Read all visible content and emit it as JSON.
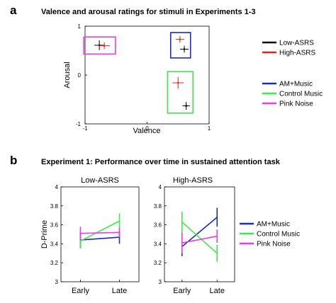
{
  "panels": {
    "a": {
      "letter": "a",
      "title": "Valence and arousal ratings for stimuli in Experiments 1-3"
    },
    "b": {
      "letter": "b",
      "title": "Experiment 1: Performance over time in sustained attention task"
    }
  },
  "colors": {
    "low_asrs": "#000000",
    "high_asrs": "#e8211f",
    "am_music": "#1a2fb6",
    "control_music": "#3ee84a",
    "pink_noise": "#e83ee5"
  },
  "chart_data": [
    {
      "type": "scatter",
      "title": "Valence and arousal ratings for stimuli in Experiments 1-3",
      "xlabel": "Valence",
      "ylabel": "Arousal",
      "xlim": [
        -1,
        1
      ],
      "ylim": [
        -1,
        1
      ],
      "xticks": [
        "-1",
        "0",
        "1"
      ],
      "yticks": [
        "-1",
        "0",
        "1"
      ],
      "grid": false,
      "legend": "right",
      "series": [
        {
          "name": "Low-ASRS",
          "color": "#000000",
          "points": [
            {
              "x": -0.77,
              "y": 0.61,
              "xerr": 0.08,
              "yerr": 0.1
            },
            {
              "x": 0.6,
              "y": 0.53,
              "xerr": 0.07,
              "yerr": 0.07
            },
            {
              "x": 0.63,
              "y": -0.63,
              "xerr": 0.06,
              "yerr": 0.08
            }
          ]
        },
        {
          "name": "High-ASRS",
          "color": "#e8211f",
          "points": [
            {
              "x": -0.69,
              "y": 0.6,
              "xerr": 0.09,
              "yerr": 0.07
            },
            {
              "x": 0.53,
              "y": 0.73,
              "xerr": 0.07,
              "yerr": 0.07
            },
            {
              "x": 0.5,
              "y": -0.16,
              "xerr": 0.09,
              "yerr": 0.12
            }
          ]
        }
      ],
      "groups": [
        {
          "name": "AM+Music",
          "color": "#1a2fb6",
          "x": [
            0.38,
            0.7
          ],
          "y": [
            0.35,
            0.87
          ]
        },
        {
          "name": "Control Music",
          "color": "#3ee84a",
          "x": [
            0.33,
            0.74
          ],
          "y": [
            -0.78,
            0.07
          ]
        },
        {
          "name": "Pink Noise",
          "color": "#e83ee5",
          "x": [
            -1.02,
            -0.51
          ],
          "y": [
            0.43,
            0.78
          ]
        }
      ]
    },
    {
      "type": "line",
      "title": "Low-ASRS",
      "ylabel": "D-Prime",
      "categories": [
        "Early",
        "Late"
      ],
      "ylim": [
        3,
        4
      ],
      "yticks": [
        "3",
        "3.2",
        "3.4",
        "3.6",
        "3.8",
        "4"
      ],
      "series": [
        {
          "name": "AM+Music",
          "color": "#1a2fb6",
          "values": [
            3.44,
            3.47
          ],
          "err": [
            0.08,
            0.07
          ]
        },
        {
          "name": "Control Music",
          "color": "#3ee84a",
          "values": [
            3.43,
            3.64
          ],
          "err": [
            0.08,
            0.08
          ]
        },
        {
          "name": "Pink Noise",
          "color": "#e83ee5",
          "values": [
            3.51,
            3.52
          ],
          "err": [
            0.07,
            0.05
          ]
        }
      ]
    },
    {
      "type": "line",
      "title": "High-ASRS",
      "categories": [
        "Early",
        "Late"
      ],
      "ylim": [
        3,
        4
      ],
      "yticks": [
        "3",
        "3.2",
        "3.4",
        "3.6",
        "3.8",
        "4"
      ],
      "legend": "right",
      "series": [
        {
          "name": "AM+Music",
          "color": "#1a2fb6",
          "values": [
            3.37,
            3.68
          ],
          "err": [
            0.1,
            0.1
          ]
        },
        {
          "name": "Control Music",
          "color": "#3ee84a",
          "values": [
            3.63,
            3.3
          ],
          "err": [
            0.11,
            0.09
          ]
        },
        {
          "name": "Pink Noise",
          "color": "#e83ee5",
          "values": [
            3.41,
            3.48
          ],
          "err": [
            0.11,
            0.07
          ]
        }
      ]
    }
  ],
  "legends": {
    "asrs": [
      "Low-ASRS",
      "High-ASRS"
    ],
    "stimuli": [
      "AM+Music",
      "Control Music",
      "Pink Noise"
    ]
  }
}
